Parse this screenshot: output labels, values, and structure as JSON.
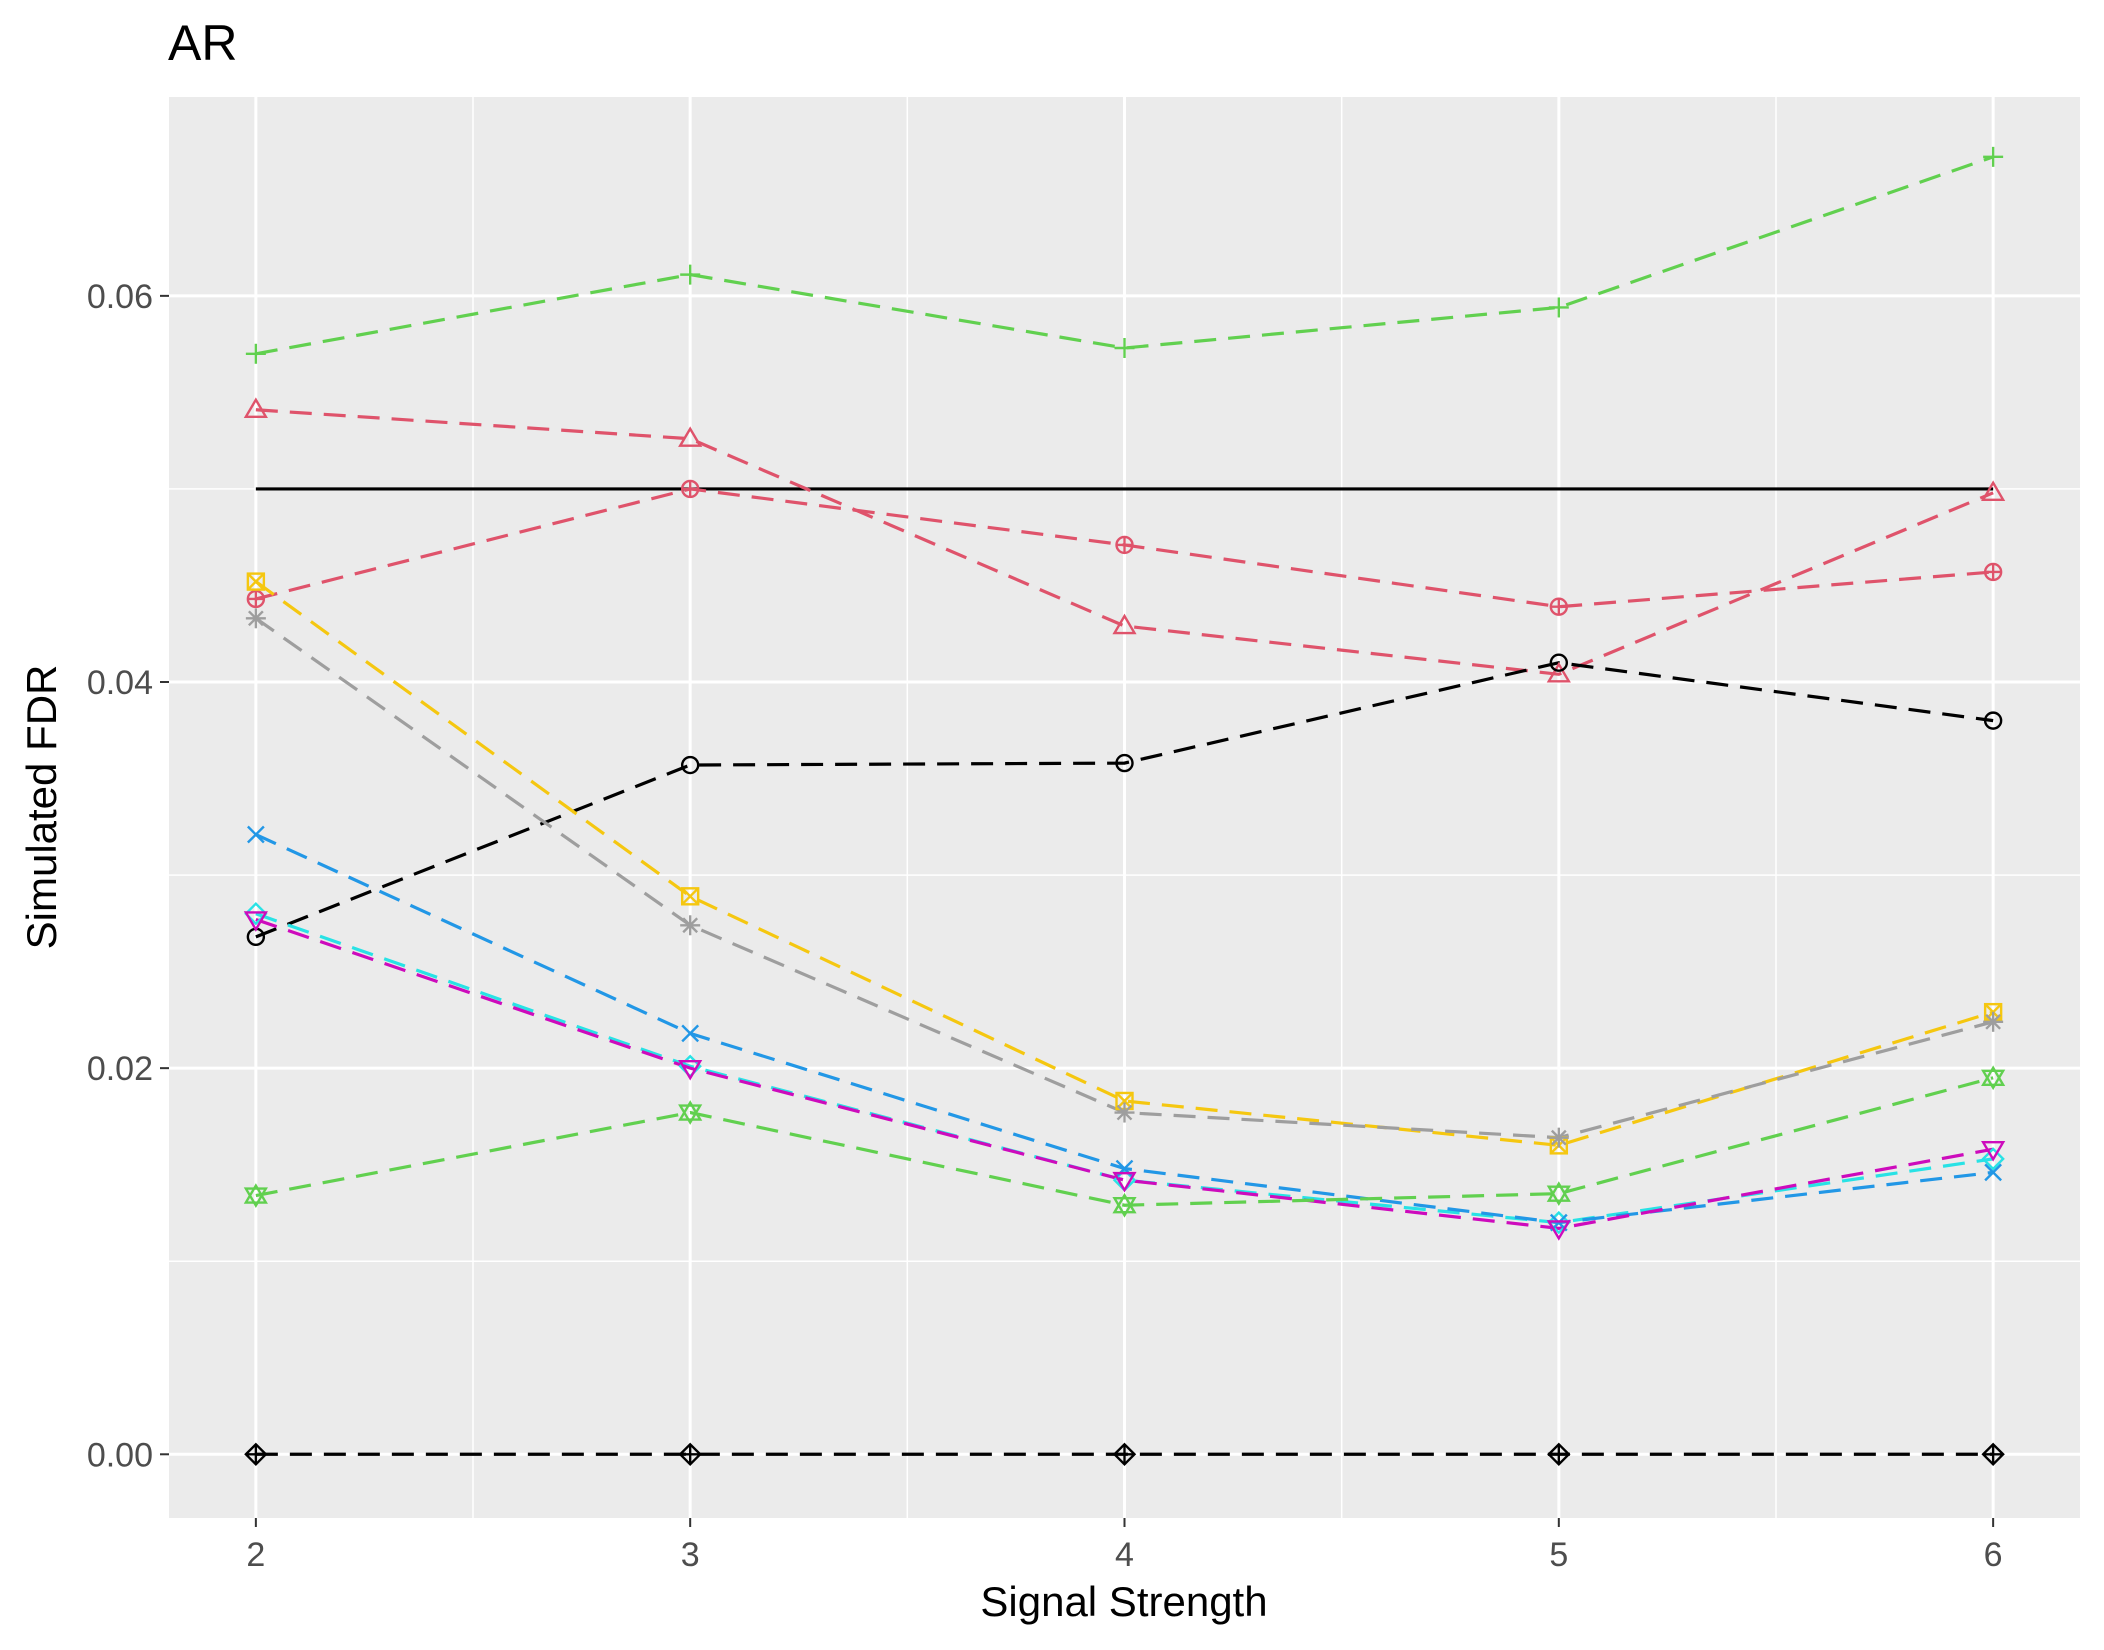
{
  "chart_data": {
    "type": "line",
    "title": "AR",
    "xlabel": "Signal Strength",
    "ylabel": "Simulated FDR",
    "x": [
      2,
      3,
      4,
      5,
      6
    ],
    "xlim": [
      1.8,
      6.2
    ],
    "ylim": [
      -0.0033,
      0.0703
    ],
    "xticks": [
      2,
      3,
      4,
      5,
      6
    ],
    "xtick_labels": [
      "2",
      "3",
      "4",
      "5",
      "6"
    ],
    "yticks": [
      0.0,
      0.02,
      0.04,
      0.06
    ],
    "ytick_labels": [
      "0.00",
      "0.02",
      "0.04",
      "0.06"
    ],
    "xminor": [
      2.5,
      3.5,
      4.5,
      5.5
    ],
    "yminor": [
      0.01,
      0.03,
      0.05
    ],
    "grid": true,
    "legend": "none",
    "reference_line": {
      "y": 0.05,
      "color": "#000000"
    },
    "series": [
      {
        "name": "green-plus",
        "color": "#61d04f",
        "marker": "plus",
        "values": [
          0.057,
          0.0611,
          0.0573,
          0.0594,
          0.0672
        ]
      },
      {
        "name": "red-triangle",
        "color": "#df536b",
        "marker": "triangle",
        "values": [
          0.0541,
          0.0526,
          0.0429,
          0.0404,
          0.0498
        ]
      },
      {
        "name": "red-circle-plus",
        "color": "#df536b",
        "marker": "circle-plus",
        "values": [
          0.0443,
          0.05,
          0.0471,
          0.0439,
          0.0457
        ]
      },
      {
        "name": "black-circle",
        "color": "#000000",
        "marker": "circle",
        "values": [
          0.0268,
          0.0357,
          0.0358,
          0.041,
          0.038
        ]
      },
      {
        "name": "yellow-square-x",
        "color": "#f5c710",
        "marker": "square-x",
        "values": [
          0.0452,
          0.0289,
          0.0183,
          0.016,
          0.0229
        ]
      },
      {
        "name": "gray-star",
        "color": "#9e9e9e",
        "marker": "star",
        "values": [
          0.0433,
          0.0274,
          0.0177,
          0.0164,
          0.0224
        ]
      },
      {
        "name": "cyan-diamond",
        "color": "#28e2e5",
        "marker": "diamond",
        "values": [
          0.028,
          0.0201,
          0.0142,
          0.012,
          0.0153
        ]
      },
      {
        "name": "blue-x",
        "color": "#2297e6",
        "marker": "x",
        "values": [
          0.0321,
          0.0218,
          0.0148,
          0.012,
          0.0146
        ]
      },
      {
        "name": "magenta-down-triangle",
        "color": "#cd0bbc",
        "marker": "triangle-down",
        "values": [
          0.0277,
          0.02,
          0.0142,
          0.0117,
          0.0158
        ]
      },
      {
        "name": "green-hourglass",
        "color": "#61d04f",
        "marker": "hourglass",
        "values": [
          0.0134,
          0.0177,
          0.0129,
          0.0135,
          0.0195
        ]
      },
      {
        "name": "black-diamond-plus",
        "color": "#000000",
        "marker": "diamond-plus",
        "values": [
          0.0,
          0.0,
          0.0,
          0.0,
          0.0
        ]
      }
    ]
  }
}
